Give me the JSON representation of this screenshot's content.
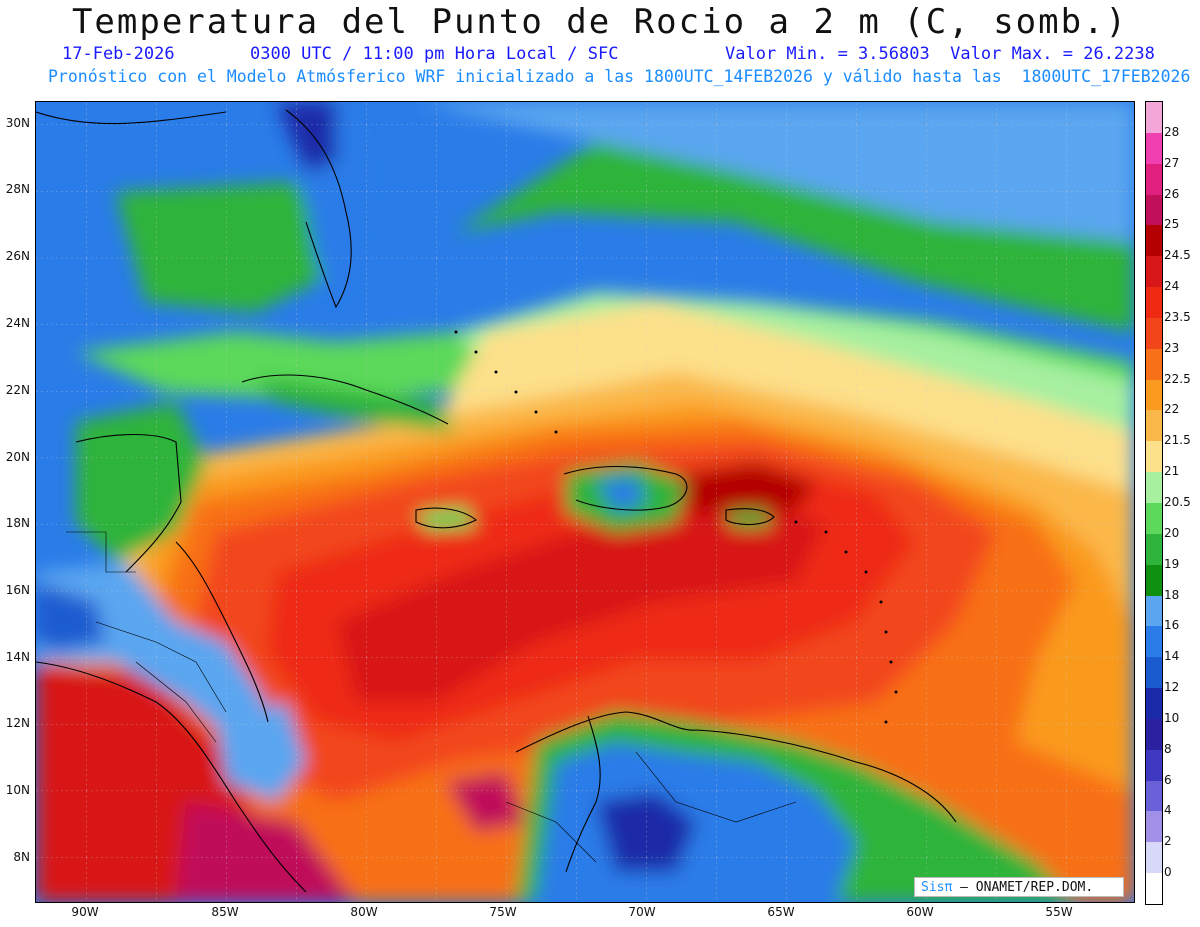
{
  "title": "Temperatura del Punto de Rocio a 2 m (C, somb.)",
  "subtitle": {
    "date": "17-Feb-2026",
    "time": "0300 UTC / 11:00 pm Hora Local / SFC",
    "range": "Valor Min. = 3.56803  Valor Max. = 26.2238"
  },
  "model_info": "Pronóstico con el Modelo Atmósferico WRF inicializado a las 1800UTC_14FEB2026 y válido hasta las  1800UTC_17FEB2026",
  "lat_labels": [
    "30N",
    "28N",
    "26N",
    "24N",
    "22N",
    "20N",
    "18N",
    "16N",
    "14N",
    "12N",
    "10N",
    "8N"
  ],
  "lon_labels": [
    "90W",
    "85W",
    "80W",
    "75W",
    "70W",
    "65W",
    "60W",
    "55W"
  ],
  "legend": {
    "labels": [
      "28",
      "27",
      "26",
      "25",
      "24.5",
      "24",
      "23.5",
      "23",
      "22.5",
      "22",
      "21.5",
      "21",
      "20.5",
      "20",
      "19",
      "18",
      "16",
      "14",
      "12",
      "10",
      "8",
      "6",
      "4",
      "2",
      "0"
    ],
    "colors": [
      "#f5a6d8",
      "#ef3fb0",
      "#e0207f",
      "#c0105a",
      "#b40000",
      "#d81818",
      "#ee2a12",
      "#f2461a",
      "#f87018",
      "#fa9a1e",
      "#fbb84a",
      "#fde08a",
      "#a6f0a0",
      "#5cd95a",
      "#2eb43a",
      "#109010",
      "#5aa6f0",
      "#2a7ce8",
      "#1a5cd0",
      "#1a2aa8",
      "#2a20a0",
      "#3f38c0",
      "#6a60d8",
      "#a090e8",
      "#d8d8f8",
      "#ffffff"
    ]
  },
  "credit": {
    "brand": "Sis",
    "pi": "π",
    "text": "– ONAMET/REP.DOM."
  }
}
